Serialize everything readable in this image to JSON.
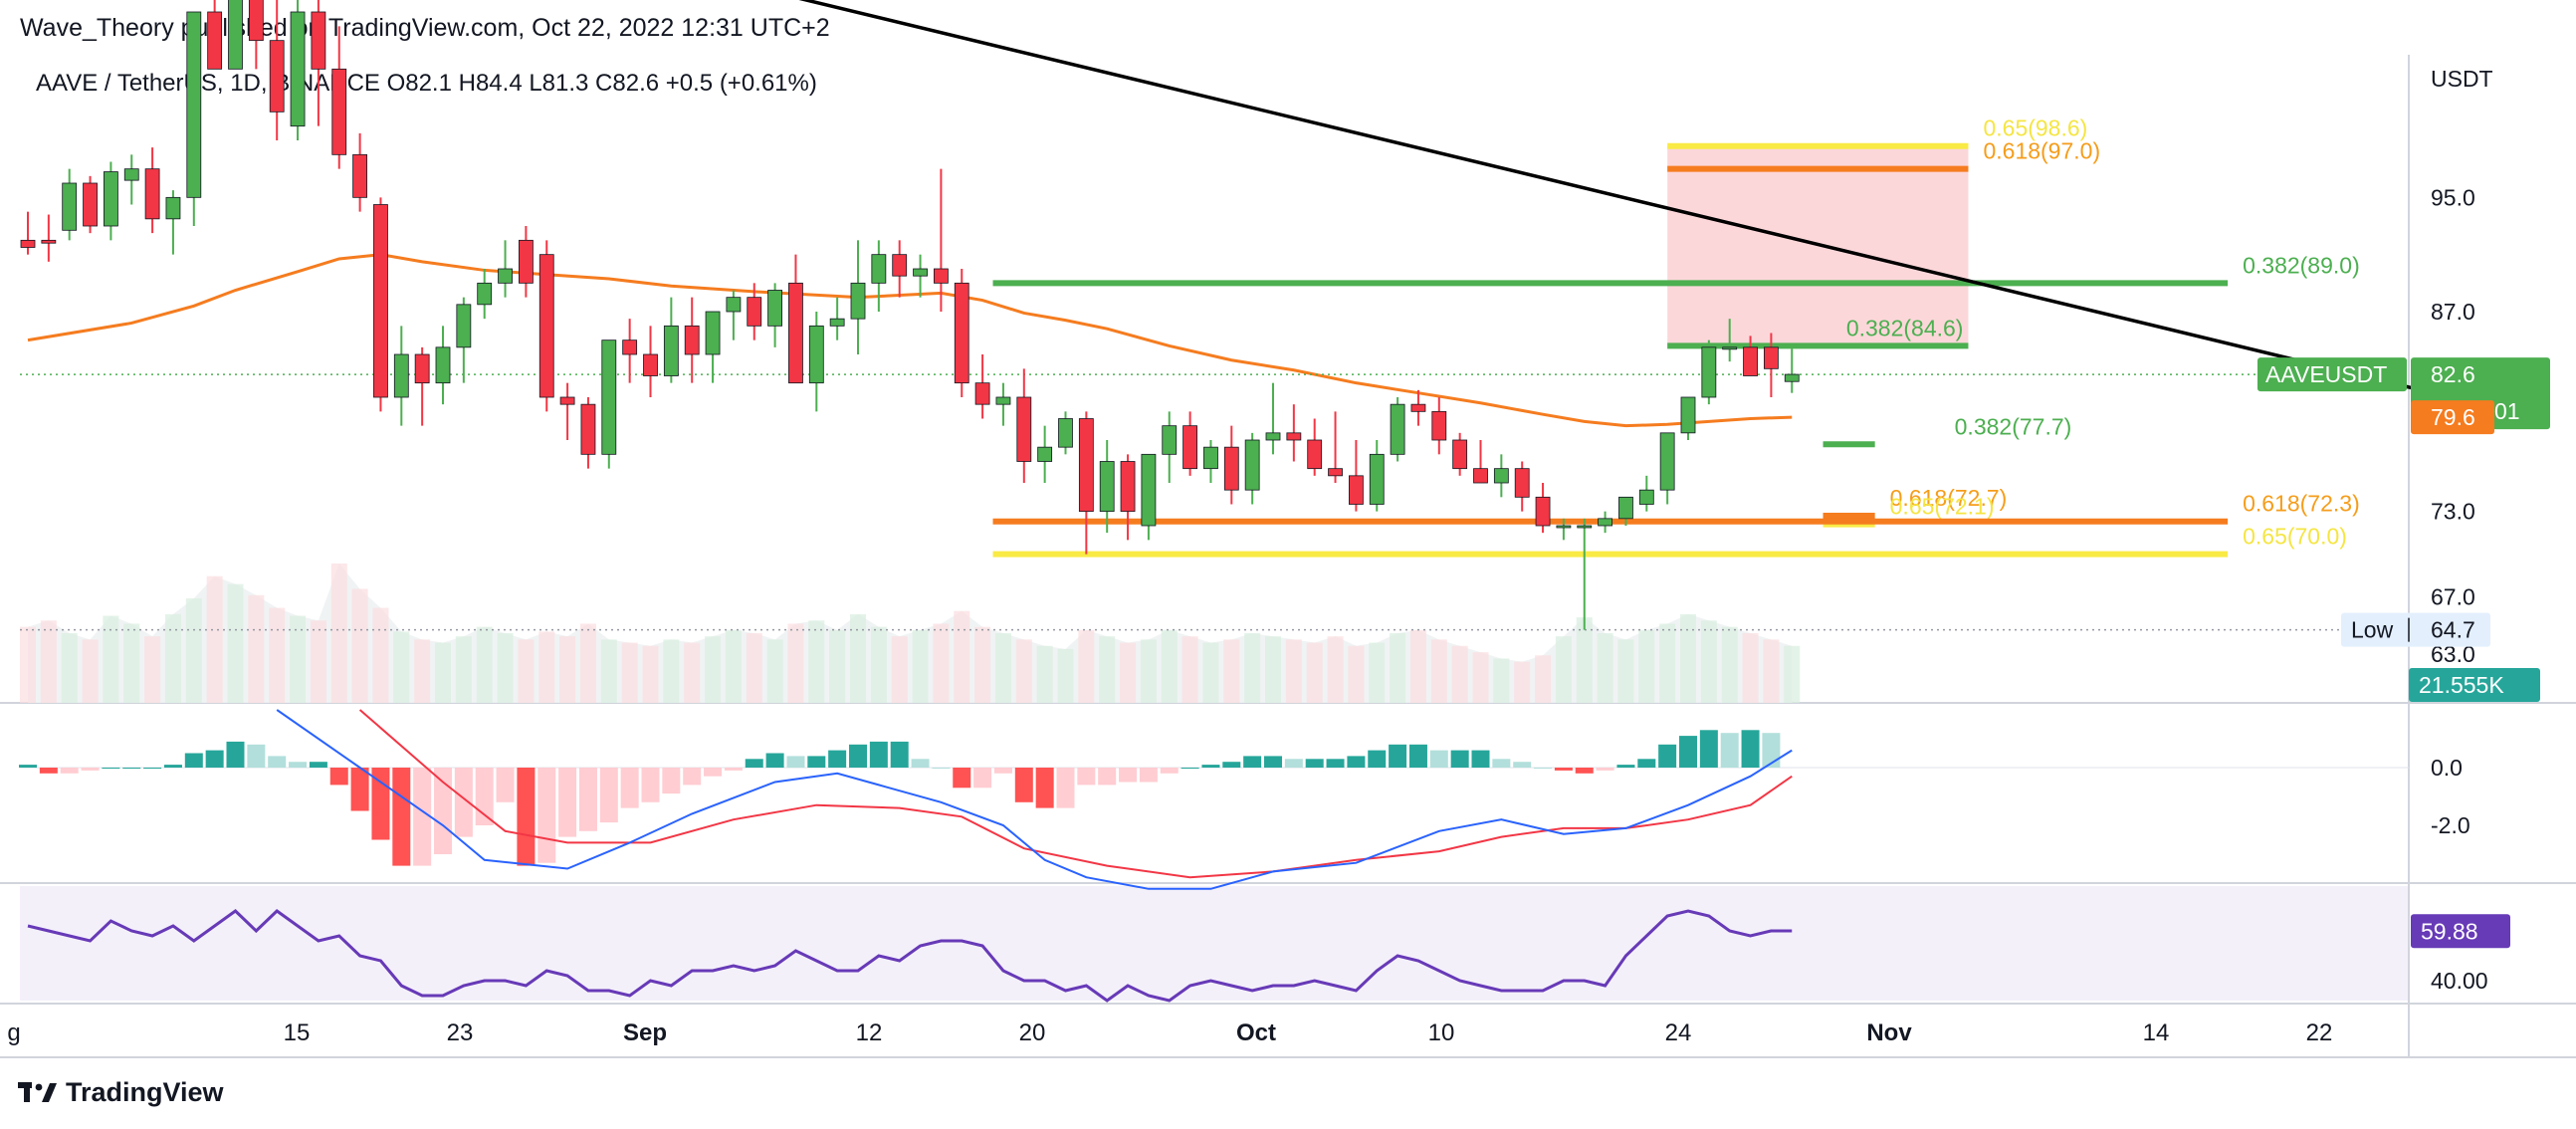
{
  "header": {
    "publisher": "Wave_Theory published on TradingView.com, Oct 22, 2022 12:31 UTC+2",
    "symbol_line": "AAVE / TetherUS, 1D, BINANCE  O82.1  H84.4  L81.3  C82.6  +0.5 (+0.61%)"
  },
  "branding": {
    "logo_icon": "tradingview-logo-icon",
    "name": "TradingView"
  },
  "colors": {
    "bull": "#4caf50",
    "bear": "#f23645",
    "ema": "#f57c1f",
    "trendline": "#000000",
    "fib_green": "#4caf50",
    "fib_orange": "#f59d1b",
    "fib_yellow": "#f5e543",
    "macd_line": "#2962ff",
    "signal_line": "#f23645",
    "rsi": "#673ab7",
    "rsi_bg": "#f4f0fa"
  },
  "chart_data": {
    "type": "candlestick",
    "symbol": "AAVE / TetherUS",
    "interval": "1D",
    "exchange": "BINANCE",
    "currency": "USDT",
    "ohlc_last": {
      "open": 82.1,
      "high": 84.4,
      "low": 81.3,
      "close": 82.6,
      "change": "+0.5",
      "change_pct": "+0.61%"
    },
    "x_ticks": [
      "g",
      "15",
      "23",
      "Sep",
      "12",
      "20",
      "Oct",
      "10",
      "24",
      "Nov",
      "14",
      "22"
    ],
    "y_ticks": [
      "95.0",
      "87.0",
      "73.0",
      "67.0",
      "63.0"
    ],
    "ylim": [
      60,
      105
    ],
    "candles": [
      [
        92,
        94,
        91,
        91.5
      ],
      [
        92,
        93.8,
        90.5,
        91.8
      ],
      [
        92.7,
        97,
        92,
        96
      ],
      [
        96,
        96.5,
        92.5,
        93
      ],
      [
        93,
        97.5,
        92,
        96.8
      ],
      [
        96.2,
        98,
        94.5,
        97
      ],
      [
        97,
        98.5,
        92.5,
        93.5
      ],
      [
        93.5,
        95.5,
        91,
        95
      ],
      [
        95,
        108,
        93,
        108
      ],
      [
        108,
        112,
        104,
        104
      ],
      [
        104,
        112,
        104,
        110
      ],
      [
        110,
        112,
        104,
        106
      ],
      [
        106,
        112,
        99,
        101
      ],
      [
        100,
        112,
        99,
        108
      ],
      [
        108,
        112,
        100,
        104
      ],
      [
        104,
        107,
        97,
        98
      ],
      [
        98,
        99.5,
        94,
        95
      ],
      [
        94.5,
        95,
        80,
        81
      ],
      [
        81,
        86,
        79,
        84
      ],
      [
        84,
        84.5,
        79,
        82
      ],
      [
        82,
        86,
        80.5,
        84.5
      ],
      [
        84.5,
        88,
        82,
        87.5
      ],
      [
        87.5,
        90,
        86.5,
        89
      ],
      [
        89,
        92,
        88,
        90
      ],
      [
        92,
        93,
        88,
        89
      ],
      [
        91,
        92,
        80,
        81
      ],
      [
        81,
        82,
        78,
        80.5
      ],
      [
        80.5,
        81,
        76,
        77
      ],
      [
        77,
        85,
        76,
        85
      ],
      [
        85,
        86.5,
        82,
        84
      ],
      [
        84,
        86,
        81,
        82.5
      ],
      [
        82.5,
        88,
        82,
        86
      ],
      [
        86,
        88,
        82,
        84
      ],
      [
        84,
        87,
        82,
        87
      ],
      [
        87,
        88.5,
        85,
        88
      ],
      [
        88,
        89,
        85,
        86
      ],
      [
        86,
        89,
        84.5,
        88.5
      ],
      [
        89,
        91,
        82,
        82
      ],
      [
        82,
        87,
        80,
        86
      ],
      [
        86,
        88,
        85,
        86.5
      ],
      [
        86.5,
        92,
        84,
        89
      ],
      [
        89,
        92,
        87,
        91
      ],
      [
        91,
        92,
        88,
        89.5
      ],
      [
        89.5,
        91,
        88,
        90
      ],
      [
        90,
        97,
        87,
        89
      ],
      [
        89,
        90,
        81,
        82
      ],
      [
        82,
        84,
        79.5,
        80.5
      ],
      [
        80.5,
        82,
        79,
        81
      ],
      [
        81,
        83,
        75,
        76.5
      ],
      [
        76.5,
        79,
        75,
        77.5
      ],
      [
        77.5,
        80,
        77,
        79.5
      ],
      [
        79.5,
        80,
        70,
        73
      ],
      [
        73,
        78,
        71.5,
        76.5
      ],
      [
        76.5,
        77,
        71,
        73
      ],
      [
        72,
        77,
        71,
        77
      ],
      [
        77,
        80,
        75,
        79
      ],
      [
        79,
        80,
        75.5,
        76
      ],
      [
        76,
        78,
        75,
        77.5
      ],
      [
        77.5,
        79,
        73.5,
        74.5
      ],
      [
        74.5,
        78.5,
        73.5,
        78
      ],
      [
        78,
        82,
        77,
        78.5
      ],
      [
        78.5,
        80.5,
        76.5,
        78
      ],
      [
        78,
        79.5,
        75.5,
        76
      ],
      [
        76,
        80,
        75,
        75.5
      ],
      [
        75.5,
        78,
        73,
        73.5
      ],
      [
        73.5,
        78,
        73,
        77
      ],
      [
        77,
        81,
        76.5,
        80.5
      ],
      [
        80.5,
        81.5,
        79,
        80
      ],
      [
        80,
        81,
        77,
        78
      ],
      [
        78,
        78.5,
        75.5,
        76
      ],
      [
        76,
        78,
        75,
        75
      ],
      [
        75,
        77,
        74,
        76
      ],
      [
        76,
        76.5,
        73,
        74
      ],
      [
        74,
        75,
        71.5,
        72
      ],
      [
        72,
        72.5,
        71,
        72
      ],
      [
        72,
        72.5,
        64.7,
        72
      ],
      [
        72,
        73,
        71.5,
        72.5
      ],
      [
        72.5,
        74,
        72,
        74
      ],
      [
        73.5,
        75.5,
        73,
        74.5
      ],
      [
        74.5,
        78.5,
        73.5,
        78.5
      ],
      [
        78.5,
        81,
        78,
        81
      ],
      [
        81,
        85,
        80.5,
        84.5
      ],
      [
        84.5,
        86.5,
        83.5,
        84.5
      ],
      [
        84.5,
        85.3,
        82.5,
        82.5
      ],
      [
        84.5,
        85.5,
        81,
        83
      ],
      [
        82.1,
        84.4,
        81.3,
        82.6
      ]
    ],
    "ema": [
      [
        0,
        85
      ],
      [
        5,
        86.2
      ],
      [
        8,
        87.4
      ],
      [
        10,
        88.5
      ],
      [
        13,
        89.8
      ],
      [
        15,
        90.7
      ],
      [
        17,
        91
      ],
      [
        19,
        90.5
      ],
      [
        22,
        89.9
      ],
      [
        25,
        89.6
      ],
      [
        28,
        89.3
      ],
      [
        31,
        88.8
      ],
      [
        35,
        88.4
      ],
      [
        40,
        88
      ],
      [
        44,
        88.3
      ],
      [
        46,
        87.8
      ],
      [
        48,
        86.9
      ],
      [
        50,
        86.4
      ],
      [
        52,
        85.8
      ],
      [
        55,
        84.6
      ],
      [
        58,
        83.6
      ],
      [
        61,
        82.9
      ],
      [
        64,
        82
      ],
      [
        67,
        81.3
      ],
      [
        70,
        80.6
      ],
      [
        73,
        79.8
      ],
      [
        75,
        79.3
      ],
      [
        77,
        79
      ],
      [
        79,
        79.1
      ],
      [
        81,
        79.3
      ],
      [
        83,
        79.5
      ],
      [
        85,
        79.6
      ]
    ],
    "ema_label": "79.6",
    "trendline": {
      "from": [
        28.5,
        112
      ],
      "to": [
        121,
        79.5
      ]
    },
    "fib_levels": [
      {
        "label": "0.382(89.0)",
        "value": 89.0,
        "kind": "green",
        "x_from": 46.5,
        "x_to": 106
      },
      {
        "label": "0.382(84.6)",
        "value": 84.6,
        "kind": "green",
        "x_from": 79,
        "x_to": 93.5
      },
      {
        "label": "0.382(77.7)",
        "value": 77.7,
        "kind": "green",
        "x_from": 86.5,
        "x_to": 89
      },
      {
        "label": "0.618(97.0)",
        "value": 97.0,
        "kind": "orange",
        "x_from": 79,
        "x_to": 93.5
      },
      {
        "label": "0.65(98.6)",
        "value": 98.6,
        "kind": "yellow",
        "x_from": 79,
        "x_to": 93.5
      },
      {
        "label": "0.618(72.7)",
        "value": 72.7,
        "kind": "orange",
        "x_from": 86.5,
        "x_to": 89
      },
      {
        "label": "0.65(72.1)",
        "value": 72.1,
        "kind": "yellow",
        "x_from": 86.5,
        "x_to": 89
      },
      {
        "label": "0.618(72.3)",
        "value": 72.3,
        "kind": "orange",
        "x_from": 46.5,
        "x_to": 106
      },
      {
        "label": "0.65(70.0)",
        "value": 70.0,
        "kind": "yellow",
        "x_from": 46.5,
        "x_to": 106
      }
    ],
    "resistance_zone": {
      "x_from": 79,
      "x_to": 93.5,
      "low": 84.6,
      "high": 98.6
    },
    "low_marker": {
      "label": "Low",
      "value": 64.7
    },
    "last_price_tag": {
      "name": "AAVEUSDT",
      "price": "82.6",
      "countdown": "13:28:01"
    },
    "volume": {
      "values": [
        48,
        52,
        44,
        40,
        55,
        50,
        42,
        56,
        66,
        80,
        75,
        68,
        60,
        55,
        52,
        88,
        72,
        60,
        45,
        40,
        38,
        42,
        48,
        44,
        40,
        45,
        42,
        50,
        40,
        38,
        36,
        40,
        38,
        42,
        46,
        44,
        40,
        50,
        52,
        46,
        56,
        48,
        42,
        46,
        50,
        58,
        48,
        44,
        40,
        36,
        34,
        46,
        42,
        38,
        40,
        46,
        42,
        38,
        40,
        44,
        42,
        40,
        38,
        42,
        36,
        38,
        44,
        46,
        40,
        36,
        32,
        28,
        26,
        30,
        42,
        54,
        44,
        40,
        46,
        50,
        56,
        52,
        48,
        44,
        40,
        36
      ],
      "label": "21.555K"
    },
    "macd": {
      "y_ticks": [
        "0.0",
        "-2.0"
      ],
      "ylim": [
        -4,
        2
      ],
      "hist": [
        0.1,
        -0.2,
        -0.2,
        -0.1,
        0,
        0,
        0,
        0.1,
        0.5,
        0.6,
        0.9,
        0.8,
        0.4,
        0.2,
        0.2,
        -0.6,
        -1.5,
        -2.5,
        -3.4,
        -3.4,
        -3,
        -2.4,
        -2,
        -1.2,
        -3.4,
        -3.3,
        -2.4,
        -2.2,
        -1.9,
        -1.4,
        -1.2,
        -0.9,
        -0.6,
        -0.3,
        -0.1,
        0.3,
        0.5,
        0.4,
        0.4,
        0.6,
        0.8,
        0.9,
        0.9,
        0.3,
        0,
        -0.7,
        -0.7,
        -0.2,
        -1.2,
        -1.4,
        -1.4,
        -0.6,
        -0.6,
        -0.5,
        -0.5,
        -0.2,
        0,
        0.1,
        0.2,
        0.4,
        0.4,
        0.3,
        0.3,
        0.3,
        0.4,
        0.6,
        0.8,
        0.8,
        0.6,
        0.6,
        0.6,
        0.3,
        0.2,
        0,
        -0.1,
        -0.2,
        -0.1,
        0.1,
        0.3,
        0.8,
        1.1,
        1.3,
        1.2,
        1.3,
        1.2
      ],
      "macd": [
        [
          12,
          2
        ],
        [
          16,
          0
        ],
        [
          20,
          -2
        ],
        [
          22,
          -3.2
        ],
        [
          26,
          -3.5
        ],
        [
          29,
          -2.6
        ],
        [
          32,
          -1.6
        ],
        [
          36,
          -0.5
        ],
        [
          39,
          -0.2
        ],
        [
          41,
          -0.6
        ],
        [
          44,
          -1.2
        ],
        [
          47,
          -2
        ],
        [
          49,
          -3.2
        ],
        [
          51,
          -3.8
        ],
        [
          54,
          -4.2
        ],
        [
          57,
          -4.2
        ],
        [
          60,
          -3.6
        ],
        [
          64,
          -3.3
        ],
        [
          68,
          -2.2
        ],
        [
          71,
          -1.8
        ],
        [
          74,
          -2.3
        ],
        [
          77,
          -2.1
        ],
        [
          80,
          -1.3
        ],
        [
          83,
          -0.3
        ],
        [
          85,
          0.6
        ]
      ],
      "signal": [
        [
          16,
          2
        ],
        [
          20,
          -0.5
        ],
        [
          23,
          -2.2
        ],
        [
          26,
          -2.6
        ],
        [
          30,
          -2.6
        ],
        [
          34,
          -1.8
        ],
        [
          38,
          -1.3
        ],
        [
          42,
          -1.4
        ],
        [
          45,
          -1.7
        ],
        [
          48,
          -2.8
        ],
        [
          52,
          -3.4
        ],
        [
          56,
          -3.8
        ],
        [
          60,
          -3.6
        ],
        [
          64,
          -3.2
        ],
        [
          68,
          -2.9
        ],
        [
          71,
          -2.4
        ],
        [
          74,
          -2.1
        ],
        [
          77,
          -2.1
        ],
        [
          80,
          -1.8
        ],
        [
          83,
          -1.3
        ],
        [
          85,
          -0.3
        ]
      ]
    },
    "rsi": {
      "y_ticks": [
        "40.00"
      ],
      "ylim": [
        32,
        78
      ],
      "current": "59.88",
      "values": [
        62,
        60,
        58,
        56,
        64,
        60,
        58,
        62,
        56,
        62,
        68,
        60,
        68,
        62,
        56,
        58,
        50,
        48,
        38,
        34,
        34,
        38,
        40,
        40,
        38,
        44,
        42,
        36,
        36,
        34,
        40,
        38,
        44,
        44,
        46,
        44,
        46,
        52,
        48,
        44,
        44,
        50,
        48,
        54,
        56,
        56,
        54,
        44,
        40,
        40,
        36,
        38,
        32,
        38,
        34,
        32,
        38,
        40,
        38,
        36,
        38,
        38,
        40,
        38,
        36,
        44,
        50,
        48,
        44,
        40,
        38,
        36,
        36,
        36,
        40,
        40,
        38,
        50,
        58,
        66,
        68,
        66,
        60,
        58,
        60,
        60
      ]
    }
  },
  "watermark": "TradingView"
}
